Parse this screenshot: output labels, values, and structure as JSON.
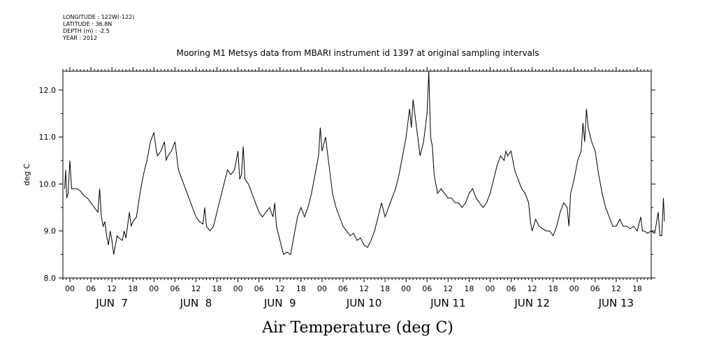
{
  "header": {
    "longitude": "LONGITUDE : 122W(-122)",
    "latitude": "LATITUDE : 36.8N",
    "depth": "DEPTH (m) : -2.5",
    "year": "YEAR : 2012"
  },
  "chart_data": {
    "type": "line",
    "title": "Mooring M1 Metsys data from MBARI instrument id 1397 at original sampling intervals",
    "xlabel": "Air Temperature (deg C)",
    "ylabel": "deg C",
    "xlim": [
      -2,
      166
    ],
    "ylim": [
      8.0,
      12.4
    ],
    "yticks": [
      8.0,
      9.0,
      10.0,
      11.0,
      12.0
    ],
    "hour_ticks": [
      "00",
      "06",
      "12",
      "18",
      "00",
      "06",
      "12",
      "18",
      "00",
      "06",
      "12",
      "18",
      "00",
      "06",
      "12",
      "18",
      "00",
      "06",
      "12",
      "18",
      "00",
      "06",
      "12",
      "18",
      "00",
      "06",
      "12",
      "18"
    ],
    "day_labels": [
      "JUN  7",
      "JUN  8",
      "JUN  9",
      "JUN 10",
      "JUN 11",
      "JUN 12",
      "JUN 13"
    ],
    "grid": false,
    "series": [
      {
        "values": [
          [
            -1.5,
            9.9
          ],
          [
            -1.2,
            10.3
          ],
          [
            -0.9,
            9.7
          ],
          [
            -0.5,
            9.8
          ],
          [
            0,
            10.5
          ],
          [
            0.5,
            9.9
          ],
          [
            1,
            9.9
          ],
          [
            2,
            9.9
          ],
          [
            3,
            9.85
          ],
          [
            4,
            9.75
          ],
          [
            5,
            9.7
          ],
          [
            6,
            9.6
          ],
          [
            7,
            9.5
          ],
          [
            8,
            9.4
          ],
          [
            8.5,
            9.9
          ],
          [
            9,
            9.3
          ],
          [
            9.5,
            9.1
          ],
          [
            10,
            9.2
          ],
          [
            10.5,
            8.9
          ],
          [
            11,
            8.7
          ],
          [
            11.5,
            9.0
          ],
          [
            12,
            8.8
          ],
          [
            12.5,
            8.5
          ],
          [
            13,
            8.7
          ],
          [
            13.5,
            8.9
          ],
          [
            14,
            8.85
          ],
          [
            15,
            8.8
          ],
          [
            15.5,
            9.0
          ],
          [
            16,
            8.85
          ],
          [
            17,
            9.4
          ],
          [
            17.5,
            9.1
          ],
          [
            18,
            9.2
          ],
          [
            19,
            9.3
          ],
          [
            20,
            9.8
          ],
          [
            21,
            10.2
          ],
          [
            22,
            10.5
          ],
          [
            23,
            10.9
          ],
          [
            24,
            11.1
          ],
          [
            24.5,
            10.8
          ],
          [
            25,
            10.6
          ],
          [
            26,
            10.7
          ],
          [
            27,
            10.9
          ],
          [
            27.5,
            10.5
          ],
          [
            28,
            10.6
          ],
          [
            29,
            10.7
          ],
          [
            30,
            10.9
          ],
          [
            30.5,
            10.6
          ],
          [
            31,
            10.3
          ],
          [
            32,
            10.1
          ],
          [
            33,
            9.9
          ],
          [
            34,
            9.7
          ],
          [
            35,
            9.5
          ],
          [
            36,
            9.3
          ],
          [
            37,
            9.2
          ],
          [
            38,
            9.15
          ],
          [
            38.5,
            9.5
          ],
          [
            39,
            9.1
          ],
          [
            40,
            9.0
          ],
          [
            41,
            9.1
          ],
          [
            42,
            9.4
          ],
          [
            43,
            9.7
          ],
          [
            44,
            10.0
          ],
          [
            45,
            10.3
          ],
          [
            46,
            10.2
          ],
          [
            47,
            10.3
          ],
          [
            48,
            10.7
          ],
          [
            48.5,
            10.1
          ],
          [
            49,
            10.2
          ],
          [
            49.5,
            10.8
          ],
          [
            50,
            10.1
          ],
          [
            51,
            10.0
          ],
          [
            52,
            9.8
          ],
          [
            53,
            9.6
          ],
          [
            54,
            9.4
          ],
          [
            55,
            9.3
          ],
          [
            56,
            9.4
          ],
          [
            57,
            9.5
          ],
          [
            58,
            9.3
          ],
          [
            58.5,
            9.6
          ],
          [
            59,
            9.1
          ],
          [
            60,
            8.8
          ],
          [
            61,
            8.5
          ],
          [
            62,
            8.55
          ],
          [
            63,
            8.5
          ],
          [
            64,
            8.9
          ],
          [
            65,
            9.3
          ],
          [
            66,
            9.5
          ],
          [
            67,
            9.3
          ],
          [
            68,
            9.5
          ],
          [
            69,
            9.8
          ],
          [
            70,
            10.2
          ],
          [
            71,
            10.6
          ],
          [
            71.5,
            11.2
          ],
          [
            72,
            10.7
          ],
          [
            73,
            11.0
          ],
          [
            74,
            10.4
          ],
          [
            75,
            9.8
          ],
          [
            76,
            9.5
          ],
          [
            77,
            9.3
          ],
          [
            78,
            9.1
          ],
          [
            79,
            9.0
          ],
          [
            80,
            8.9
          ],
          [
            81,
            8.95
          ],
          [
            82,
            8.8
          ],
          [
            83,
            8.85
          ],
          [
            84,
            8.7
          ],
          [
            85,
            8.65
          ],
          [
            86,
            8.8
          ],
          [
            87,
            9.0
          ],
          [
            88,
            9.3
          ],
          [
            89,
            9.6
          ],
          [
            90,
            9.3
          ],
          [
            91,
            9.5
          ],
          [
            92,
            9.7
          ],
          [
            93,
            9.9
          ],
          [
            94,
            10.2
          ],
          [
            95,
            10.6
          ],
          [
            96,
            11.0
          ],
          [
            97,
            11.6
          ],
          [
            97.5,
            11.2
          ],
          [
            98,
            11.8
          ],
          [
            99,
            11.2
          ],
          [
            100,
            10.6
          ],
          [
            101,
            10.9
          ],
          [
            102,
            11.5
          ],
          [
            102.5,
            12.4
          ],
          [
            103,
            11.0
          ],
          [
            103.5,
            10.8
          ],
          [
            104,
            10.2
          ],
          [
            105,
            9.8
          ],
          [
            106,
            9.9
          ],
          [
            107,
            9.8
          ],
          [
            108,
            9.7
          ],
          [
            109,
            9.7
          ],
          [
            110,
            9.6
          ],
          [
            111,
            9.6
          ],
          [
            112,
            9.5
          ],
          [
            113,
            9.6
          ],
          [
            114,
            9.8
          ],
          [
            115,
            9.9
          ],
          [
            116,
            9.7
          ],
          [
            117,
            9.6
          ],
          [
            118,
            9.5
          ],
          [
            119,
            9.6
          ],
          [
            120,
            9.8
          ],
          [
            121,
            10.1
          ],
          [
            122,
            10.4
          ],
          [
            123,
            10.6
          ],
          [
            124,
            10.5
          ],
          [
            124.5,
            10.7
          ],
          [
            125,
            10.6
          ],
          [
            126,
            10.7
          ],
          [
            127,
            10.3
          ],
          [
            128,
            10.1
          ],
          [
            129,
            9.9
          ],
          [
            130,
            9.8
          ],
          [
            131,
            9.6
          ],
          [
            131.5,
            9.2
          ],
          [
            132,
            9.0
          ],
          [
            133,
            9.25
          ],
          [
            134,
            9.1
          ],
          [
            135,
            9.05
          ],
          [
            136,
            9.0
          ],
          [
            137,
            9.0
          ],
          [
            138,
            8.9
          ],
          [
            139,
            9.1
          ],
          [
            140,
            9.4
          ],
          [
            141,
            9.6
          ],
          [
            142,
            9.5
          ],
          [
            142.5,
            9.1
          ],
          [
            143,
            9.8
          ],
          [
            144,
            10.1
          ],
          [
            145,
            10.5
          ],
          [
            146,
            10.7
          ],
          [
            146.5,
            11.3
          ],
          [
            147,
            10.9
          ],
          [
            147.5,
            11.6
          ],
          [
            148,
            11.2
          ],
          [
            149,
            10.9
          ],
          [
            150,
            10.7
          ],
          [
            151,
            10.2
          ],
          [
            152,
            9.8
          ],
          [
            153,
            9.5
          ],
          [
            154,
            9.3
          ],
          [
            155,
            9.1
          ],
          [
            156,
            9.1
          ],
          [
            157,
            9.25
          ],
          [
            158,
            9.1
          ],
          [
            159,
            9.1
          ],
          [
            160,
            9.05
          ],
          [
            161,
            9.1
          ],
          [
            162,
            9.0
          ],
          [
            163,
            9.3
          ],
          [
            163.5,
            9.0
          ],
          [
            164,
            9.0
          ],
          [
            165,
            8.95
          ],
          [
            166,
            9.0
          ],
          [
            167,
            8.95
          ],
          [
            168,
            9.4
          ],
          [
            168.5,
            8.9
          ],
          [
            169,
            8.9
          ],
          [
            169.5,
            9.7
          ],
          [
            169.8,
            9.2
          ]
        ]
      }
    ]
  }
}
